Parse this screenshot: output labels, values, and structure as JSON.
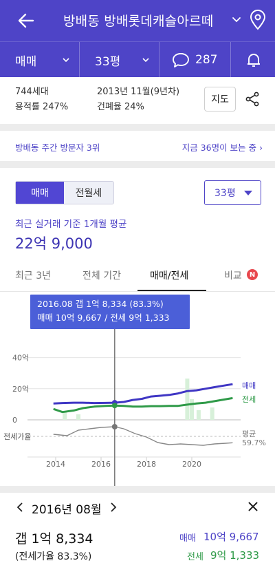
{
  "header": {
    "title": "방배동 방배롯데캐슬아르떼",
    "icons": [
      "back-arrow-icon",
      "chevron-down-icon",
      "location-pin-icon"
    ]
  },
  "filters": {
    "trade_type": "매매",
    "size": "33평",
    "comment_count": "287",
    "icons": [
      "chat-bubble-icon",
      "bell-icon"
    ]
  },
  "summary": {
    "households": "744세대",
    "floor_area_ratio": "용적률 247%",
    "built": "2013년 11월(9년차)",
    "building_coverage": "건폐율 24%",
    "map_button": "지도"
  },
  "visits": {
    "rank_text": "방배동 주간 방문자 3위",
    "viewers_text": "지금 36명이 보는 중"
  },
  "trade_toggle": {
    "options": [
      "매매",
      "전월세"
    ],
    "selected": "매매"
  },
  "size_select": "33평",
  "average": {
    "label": "최근 실거래 기준 1개월 평균",
    "price": "22억 9,000"
  },
  "tabs": [
    {
      "label": "최근 3년"
    },
    {
      "label": "전체 기간"
    },
    {
      "label": "매매/전세",
      "active": true
    },
    {
      "label": "비교",
      "badge": "N"
    }
  ],
  "tooltip": {
    "line1": "2016.08  갭 1억 8,334 (83.3%)",
    "line2": "매매 10억 9,667 / 전세 9억 1,333"
  },
  "colors": {
    "brand": "#4e44c7",
    "sale": "#3f36c4",
    "jeonse": "#2f9a48",
    "ratio": "#888888"
  },
  "chart_data": {
    "type": "line",
    "y_ticks": [
      "40억",
      "20억",
      "0"
    ],
    "ylim": [
      0,
      50
    ],
    "x_ticks": [
      "2014",
      "2016",
      "2018",
      "2020"
    ],
    "xlim": [
      2013.0,
      2022.0
    ],
    "sub_axis_label": "전세가율",
    "series": [
      {
        "name": "매매",
        "x": [
          2013.9,
          2014.3,
          2014.8,
          2015.2,
          2015.7,
          2016.2,
          2016.6,
          2017.0,
          2017.4,
          2017.8,
          2018.2,
          2018.6,
          2019.0,
          2019.4,
          2019.8,
          2020.2,
          2020.6,
          2021.0,
          2021.4,
          2021.8
        ],
        "values": [
          10.5,
          10.8,
          11.0,
          11.0,
          10.8,
          10.9,
          11.0,
          11.5,
          12.8,
          13.5,
          15.0,
          15.5,
          16.0,
          17.0,
          18.5,
          19.0,
          20.0,
          21.0,
          22.0,
          22.9
        ]
      },
      {
        "name": "전세",
        "x": [
          2013.9,
          2014.3,
          2014.8,
          2015.2,
          2015.7,
          2016.2,
          2016.6,
          2017.0,
          2017.4,
          2017.8,
          2018.2,
          2018.6,
          2019.0,
          2019.4,
          2019.8,
          2020.2,
          2020.6,
          2021.0,
          2021.4,
          2021.8
        ],
        "values": [
          7.0,
          5.0,
          6.0,
          7.5,
          8.5,
          9.0,
          9.2,
          9.0,
          8.5,
          8.5,
          8.8,
          8.8,
          9.0,
          9.0,
          9.8,
          10.5,
          11.0,
          12.0,
          13.0,
          14.0
        ]
      },
      {
        "name": "평균",
        "x": [
          2013.9,
          2014.5,
          2015.0,
          2015.5,
          2016.0,
          2016.6,
          2017.0,
          2017.5,
          2018.0,
          2018.5,
          2019.0,
          2019.5,
          2020.0,
          2020.5,
          2021.0,
          2021.5,
          2021.8
        ],
        "values": [
          72,
          70,
          78,
          80,
          82,
          83,
          80,
          73,
          68,
          60,
          57,
          58,
          57,
          56,
          58,
          59,
          59.7
        ]
      }
    ],
    "series_end_labels": [
      "매매",
      "전세",
      "평균",
      "59.7%"
    ],
    "selected_x": 2016.6
  },
  "detail": {
    "month": "2016년 08월",
    "gap": "갭 1억 8,334",
    "ratio": "(전세가율 83.3%)",
    "sale_label": "매매",
    "sale_value": "10억 9,667",
    "jeonse_label": "전세",
    "jeonse_value": "9억 1,333",
    "icons": [
      "chevron-left-icon",
      "chevron-right-icon",
      "close-icon"
    ]
  }
}
